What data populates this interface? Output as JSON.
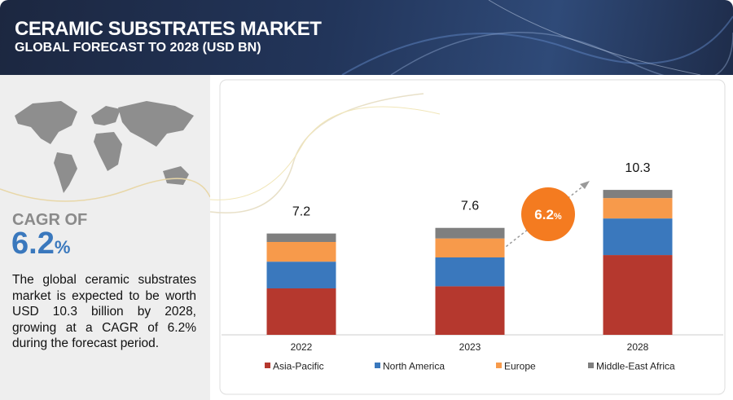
{
  "header": {
    "title": "CERAMIC SUBSTRATES MARKET",
    "subtitle": "GLOBAL FORECAST TO 2028 (USD BN)"
  },
  "cagr": {
    "label": "CAGR OF",
    "value": "6.2",
    "unit": "%"
  },
  "description": "The global ceramic substrates market is expected to be worth USD 10.3 billion by 2028, growing at a CAGR of 6.2% during the forecast period.",
  "chart_data": {
    "type": "stacked_bar",
    "categories": [
      "2022",
      "2023",
      "2028"
    ],
    "series": [
      {
        "name": "Asia-Pacific",
        "color": "#b5382e",
        "values": [
          3.3,
          3.45,
          5.67
        ]
      },
      {
        "name": "North America",
        "color": "#3a78bd",
        "values": [
          1.9,
          2.05,
          2.6
        ]
      },
      {
        "name": "Europe",
        "color": "#f79a4b",
        "values": [
          1.4,
          1.35,
          1.45
        ]
      },
      {
        "name": "Middle-East Africa",
        "color": "#7f7f7f",
        "values": [
          0.6,
          0.75,
          0.58
        ]
      }
    ],
    "totals": [
      7.2,
      7.6,
      10.3
    ],
    "ylim": [
      0,
      11
    ]
  }
}
